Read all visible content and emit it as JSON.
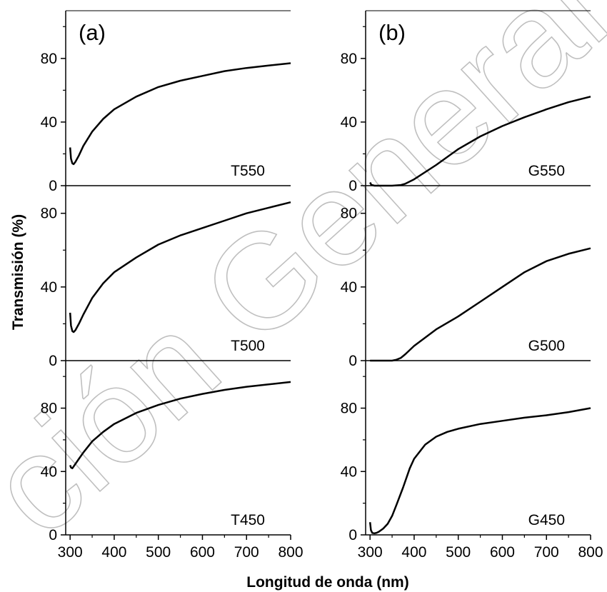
{
  "watermark": "ción General de Biblio",
  "chart_data": {
    "type": "line",
    "ylabel": "Transmisión (%)",
    "xlabel": "Longitud de onda (nm)",
    "xlim": [
      290,
      800
    ],
    "xticks": [
      300,
      400,
      500,
      600,
      700,
      800
    ],
    "grid": false,
    "columns": [
      {
        "panel_label": "(a)",
        "subplots": [
          {
            "label": "T550",
            "ylim": [
              0,
              110
            ],
            "yticks": [
              0,
              40,
              80
            ],
            "series": [
              {
                "x": [
                  300,
                  302,
                  305,
                  308,
                  312,
                  320,
                  330,
                  350,
                  375,
                  400,
                  450,
                  500,
                  550,
                  600,
                  650,
                  700,
                  750,
                  800
                ],
                "y": [
                  24,
                  17,
                  14,
                  13.5,
                  15,
                  19,
                  25,
                  34,
                  42,
                  48,
                  56,
                  62,
                  66,
                  69,
                  72,
                  74,
                  75.5,
                  77
                ]
              }
            ]
          },
          {
            "label": "T500",
            "ylim": [
              0,
              95
            ],
            "yticks": [
              0,
              40,
              80
            ],
            "series": [
              {
                "x": [
                  300,
                  302,
                  305,
                  308,
                  312,
                  320,
                  330,
                  350,
                  375,
                  400,
                  450,
                  500,
                  550,
                  600,
                  650,
                  700,
                  750,
                  800
                ],
                "y": [
                  26,
                  19,
                  16,
                  15.5,
                  16.5,
                  20,
                  25,
                  34,
                  42,
                  48,
                  56,
                  63,
                  68,
                  72,
                  76,
                  80,
                  83,
                  86
                ]
              }
            ]
          },
          {
            "label": "T450",
            "ylim": [
              0,
              110
            ],
            "yticks": [
              0,
              40,
              80
            ],
            "series": [
              {
                "x": [
                  300,
                  302,
                  305,
                  310,
                  320,
                  330,
                  350,
                  375,
                  400,
                  450,
                  500,
                  550,
                  600,
                  650,
                  700,
                  750,
                  800
                ],
                "y": [
                  44,
                  42.5,
                  42,
                  44,
                  48,
                  52,
                  59,
                  65,
                  70,
                  77,
                  82,
                  86,
                  89,
                  91.5,
                  93.5,
                  95,
                  96.5
                ]
              }
            ]
          }
        ]
      },
      {
        "panel_label": "(b)",
        "subplots": [
          {
            "label": "G550",
            "ylim": [
              0,
              110
            ],
            "yticks": [
              0,
              40,
              80
            ],
            "series": [
              {
                "x": [
                  300,
                  303,
                  310,
                  330,
                  350,
                  370,
                  380,
                  400,
                  450,
                  500,
                  550,
                  600,
                  650,
                  700,
                  750,
                  800
                ],
                "y": [
                  2,
                  0.5,
                  0,
                  0,
                  0,
                  0.4,
                  1.2,
                  4,
                  13,
                  23,
                  31,
                  37.5,
                  43,
                  48,
                  52.5,
                  56
                ]
              }
            ]
          },
          {
            "label": "G500",
            "ylim": [
              0,
              95
            ],
            "yticks": [
              0,
              40,
              80
            ],
            "series": [
              {
                "x": [
                  300,
                  330,
                  350,
                  360,
                  370,
                  380,
                  400,
                  450,
                  500,
                  550,
                  600,
                  650,
                  700,
                  750,
                  800
                ],
                "y": [
                  0,
                  0,
                  0,
                  0.5,
                  1.5,
                  3.5,
                  8,
                  17,
                  24,
                  32,
                  40,
                  48,
                  54,
                  58,
                  61
                ]
              }
            ]
          },
          {
            "label": "G450",
            "ylim": [
              0,
              110
            ],
            "yticks": [
              0,
              40,
              80
            ],
            "series": [
              {
                "x": [
                  300,
                  302,
                  305,
                  310,
                  315,
                  320,
                  330,
                  340,
                  350,
                  360,
                  375,
                  390,
                  400,
                  425,
                  450,
                  475,
                  500,
                  550,
                  600,
                  650,
                  700,
                  750,
                  800
                ],
                "y": [
                  8,
                  3,
                  1.2,
                  1,
                  1.3,
                  2,
                  4,
                  7,
                  12,
                  19,
                  30,
                  42,
                  48,
                  57,
                  62,
                  65,
                  67,
                  70,
                  72,
                  74,
                  75.5,
                  77.5,
                  80
                ]
              }
            ]
          }
        ]
      }
    ]
  }
}
